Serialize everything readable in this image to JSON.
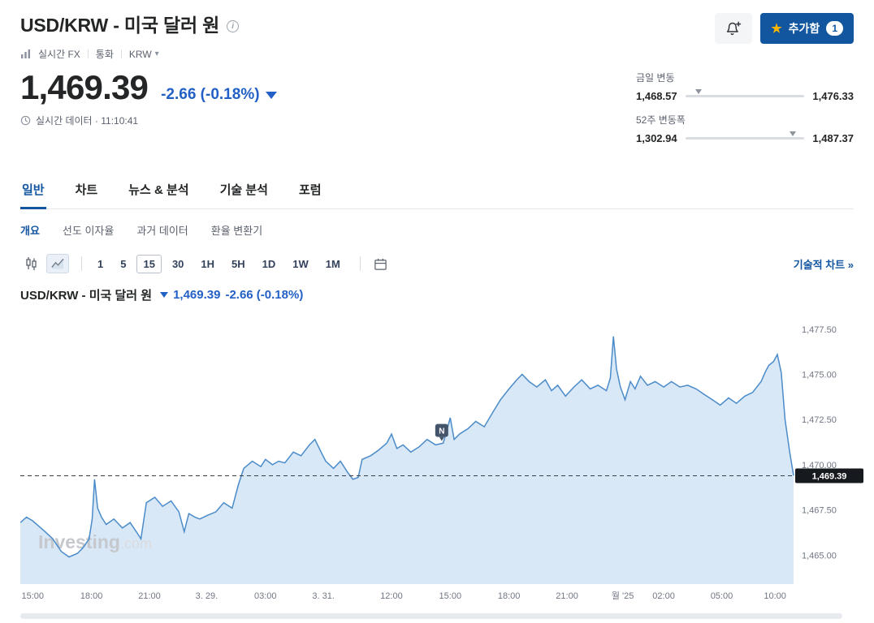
{
  "colors": {
    "brand_blue": "#1256a0",
    "down_blue": "#2360c6",
    "chart_line": "#4a8bc9",
    "chart_fill": "#d9e8f7",
    "star_gold": "#f7b500",
    "price_tag_bg": "#16191e"
  },
  "header": {
    "title": "USD/KRW - 미국 달러 원",
    "breadcrumb": {
      "market": "실시간 FX",
      "type": "통화",
      "currency_selector": "KRW"
    },
    "watchlist_button": {
      "label": "추가함",
      "badge": "1"
    }
  },
  "quote": {
    "price": "1,469.39",
    "change": "-2.66 (-0.18%)",
    "realtime": "실시간 데이터 · 11:10:41"
  },
  "ranges": {
    "daily": {
      "label": "금일 변동",
      "low": "1,468.57",
      "high": "1,476.33",
      "position": 0.11
    },
    "week52": {
      "label": "52주 변동폭",
      "low": "1,302.94",
      "high": "1,487.37",
      "position": 0.9
    }
  },
  "tabs": {
    "items": [
      {
        "label": "일반",
        "active": true
      },
      {
        "label": "차트"
      },
      {
        "label": "뉴스 & 분석"
      },
      {
        "label": "기술 분석"
      },
      {
        "label": "포럼"
      }
    ]
  },
  "subtabs": {
    "items": [
      {
        "label": "개요",
        "active": true
      },
      {
        "label": "선도 이자율"
      },
      {
        "label": "과거 데이터"
      },
      {
        "label": "환율 변환기"
      }
    ]
  },
  "toolbar": {
    "intervals": [
      "1",
      "5",
      "15",
      "30",
      "1H",
      "5H",
      "1D",
      "1W",
      "1M"
    ],
    "active_interval": "15",
    "tech_chart_link": "기술적 차트 »"
  },
  "chart_header": {
    "title": "USD/KRW - 미국 달러 원",
    "price": "1,469.39",
    "change": "-2.66 (-0.18%)"
  },
  "watermark": {
    "main": "Investing",
    "suffix": ".com"
  },
  "chart_data": {
    "type": "area",
    "instrument": "USD/KRW",
    "interval": "15",
    "current_price": 1469.39,
    "current_price_label": "1,469.39",
    "ylim": [
      1463.4,
      1478.3
    ],
    "y_ticks": [
      {
        "v": 1465.0,
        "label": "1,465.00"
      },
      {
        "v": 1467.5,
        "label": "1,467.50"
      },
      {
        "v": 1470.0,
        "label": "1,470.00"
      },
      {
        "v": 1472.5,
        "label": "1,472.50"
      },
      {
        "v": 1475.0,
        "label": "1,475.00"
      },
      {
        "v": 1477.5,
        "label": "1,477.50"
      }
    ],
    "x_ticks": [
      {
        "f": 0.016,
        "label": "15:00"
      },
      {
        "f": 0.092,
        "label": "18:00"
      },
      {
        "f": 0.167,
        "label": "21:00"
      },
      {
        "f": 0.241,
        "label": "3. 29."
      },
      {
        "f": 0.317,
        "label": "03:00"
      },
      {
        "f": 0.392,
        "label": "3. 31."
      },
      {
        "f": 0.48,
        "label": "12:00"
      },
      {
        "f": 0.556,
        "label": "15:00"
      },
      {
        "f": 0.632,
        "label": "18:00"
      },
      {
        "f": 0.707,
        "label": "21:00"
      },
      {
        "f": 0.779,
        "label": "월 '25"
      },
      {
        "f": 0.832,
        "label": "02:00"
      },
      {
        "f": 0.907,
        "label": "05:00"
      },
      {
        "f": 0.976,
        "label": "10:00"
      }
    ],
    "news_marker": {
      "label": "N",
      "f": 0.545,
      "v": 1471.9
    },
    "points": [
      [
        0.0,
        1466.8
      ],
      [
        0.008,
        1467.1
      ],
      [
        0.016,
        1466.9
      ],
      [
        0.024,
        1466.6
      ],
      [
        0.032,
        1466.3
      ],
      [
        0.042,
        1465.9
      ],
      [
        0.053,
        1465.2
      ],
      [
        0.063,
        1464.9
      ],
      [
        0.074,
        1465.1
      ],
      [
        0.081,
        1465.4
      ],
      [
        0.089,
        1465.9
      ],
      [
        0.093,
        1467.0
      ],
      [
        0.096,
        1469.2
      ],
      [
        0.1,
        1467.6
      ],
      [
        0.105,
        1467.1
      ],
      [
        0.111,
        1466.7
      ],
      [
        0.121,
        1467.0
      ],
      [
        0.132,
        1466.5
      ],
      [
        0.142,
        1466.8
      ],
      [
        0.15,
        1466.3
      ],
      [
        0.156,
        1465.9
      ],
      [
        0.163,
        1467.9
      ],
      [
        0.174,
        1468.2
      ],
      [
        0.184,
        1467.7
      ],
      [
        0.195,
        1468.0
      ],
      [
        0.205,
        1467.4
      ],
      [
        0.212,
        1466.3
      ],
      [
        0.218,
        1467.3
      ],
      [
        0.226,
        1467.1
      ],
      [
        0.232,
        1467.0
      ],
      [
        0.242,
        1467.2
      ],
      [
        0.253,
        1467.4
      ],
      [
        0.263,
        1467.9
      ],
      [
        0.274,
        1467.6
      ],
      [
        0.282,
        1468.9
      ],
      [
        0.289,
        1469.8
      ],
      [
        0.3,
        1470.2
      ],
      [
        0.311,
        1469.9
      ],
      [
        0.317,
        1470.3
      ],
      [
        0.326,
        1470.0
      ],
      [
        0.334,
        1470.2
      ],
      [
        0.342,
        1470.1
      ],
      [
        0.353,
        1470.7
      ],
      [
        0.363,
        1470.5
      ],
      [
        0.374,
        1471.1
      ],
      [
        0.381,
        1471.4
      ],
      [
        0.389,
        1470.7
      ],
      [
        0.395,
        1470.2
      ],
      [
        0.405,
        1469.8
      ],
      [
        0.414,
        1470.2
      ],
      [
        0.423,
        1469.6
      ],
      [
        0.43,
        1469.2
      ],
      [
        0.437,
        1469.3
      ],
      [
        0.442,
        1470.3
      ],
      [
        0.453,
        1470.5
      ],
      [
        0.463,
        1470.8
      ],
      [
        0.474,
        1471.2
      ],
      [
        0.48,
        1471.7
      ],
      [
        0.487,
        1470.9
      ],
      [
        0.495,
        1471.1
      ],
      [
        0.505,
        1470.7
      ],
      [
        0.516,
        1471.0
      ],
      [
        0.526,
        1471.4
      ],
      [
        0.537,
        1471.1
      ],
      [
        0.547,
        1471.2
      ],
      [
        0.556,
        1472.6
      ],
      [
        0.561,
        1471.4
      ],
      [
        0.568,
        1471.7
      ],
      [
        0.579,
        1472.0
      ],
      [
        0.589,
        1472.4
      ],
      [
        0.6,
        1472.1
      ],
      [
        0.611,
        1472.9
      ],
      [
        0.621,
        1473.6
      ],
      [
        0.632,
        1474.2
      ],
      [
        0.642,
        1474.7
      ],
      [
        0.649,
        1475.0
      ],
      [
        0.658,
        1474.6
      ],
      [
        0.668,
        1474.3
      ],
      [
        0.679,
        1474.7
      ],
      [
        0.687,
        1474.1
      ],
      [
        0.695,
        1474.4
      ],
      [
        0.705,
        1473.8
      ],
      [
        0.716,
        1474.3
      ],
      [
        0.726,
        1474.7
      ],
      [
        0.737,
        1474.2
      ],
      [
        0.747,
        1474.4
      ],
      [
        0.758,
        1474.1
      ],
      [
        0.763,
        1474.8
      ],
      [
        0.767,
        1477.1
      ],
      [
        0.771,
        1475.3
      ],
      [
        0.776,
        1474.3
      ],
      [
        0.782,
        1473.6
      ],
      [
        0.789,
        1474.6
      ],
      [
        0.795,
        1474.2
      ],
      [
        0.802,
        1474.9
      ],
      [
        0.811,
        1474.4
      ],
      [
        0.821,
        1474.6
      ],
      [
        0.832,
        1474.3
      ],
      [
        0.842,
        1474.6
      ],
      [
        0.853,
        1474.3
      ],
      [
        0.863,
        1474.4
      ],
      [
        0.874,
        1474.2
      ],
      [
        0.884,
        1473.9
      ],
      [
        0.895,
        1473.6
      ],
      [
        0.905,
        1473.3
      ],
      [
        0.916,
        1473.7
      ],
      [
        0.926,
        1473.4
      ],
      [
        0.937,
        1473.8
      ],
      [
        0.947,
        1474.0
      ],
      [
        0.958,
        1474.6
      ],
      [
        0.963,
        1475.1
      ],
      [
        0.968,
        1475.5
      ],
      [
        0.974,
        1475.7
      ],
      [
        0.979,
        1476.1
      ],
      [
        0.984,
        1475.1
      ],
      [
        0.989,
        1472.5
      ],
      [
        0.995,
        1470.7
      ],
      [
        1.0,
        1469.4
      ]
    ]
  }
}
